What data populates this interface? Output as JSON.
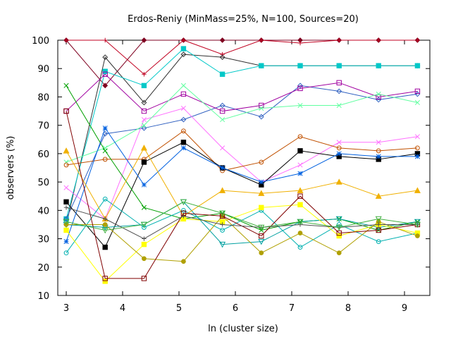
{
  "chart_data": {
    "type": "line",
    "title": "Erdos-Reniy (MinMass=25%, N=100, Sources=20)",
    "xlabel": "ln (cluster size)",
    "ylabel": "observers (%)",
    "xlim": [
      2.85,
      9.45
    ],
    "ylim": [
      10,
      100
    ],
    "x_ticks": [
      3,
      4,
      5,
      6,
      7,
      8,
      9
    ],
    "y_ticks": [
      10,
      20,
      30,
      40,
      50,
      60,
      70,
      80,
      90,
      100
    ],
    "grid": false,
    "legend": "none",
    "x": [
      3.0,
      3.69,
      4.38,
      5.08,
      5.77,
      6.46,
      7.15,
      7.84,
      8.54,
      9.23
    ],
    "series": [
      {
        "color": "#7f0020",
        "marker": "diamond-filled",
        "values": [
          100,
          84,
          100,
          100,
          100,
          100,
          100,
          100,
          100,
          100
        ]
      },
      {
        "color": "#c00020",
        "marker": "plus",
        "values": [
          100,
          100,
          88,
          100,
          95,
          100,
          99,
          100,
          100,
          100
        ]
      },
      {
        "color": "#303030",
        "marker": "diamond-open",
        "values": [
          35,
          94,
          78,
          95,
          94,
          91,
          91,
          91,
          91,
          91
        ]
      },
      {
        "color": "#00c8c8",
        "marker": "square-filled",
        "values": [
          37,
          89,
          84,
          97,
          88,
          91,
          91,
          91,
          91,
          91
        ]
      },
      {
        "color": "#3060c0",
        "marker": "diamond-open",
        "values": [
          37,
          67,
          69,
          72,
          77,
          73,
          84,
          82,
          79,
          81
        ]
      },
      {
        "color": "#a000a0",
        "marker": "square-open",
        "values": [
          75,
          88,
          75,
          81,
          75,
          77,
          83,
          85,
          80,
          82
        ]
      },
      {
        "color": "#ff70ff",
        "marker": "x",
        "values": [
          48,
          37,
          72,
          76,
          62,
          50,
          56,
          64,
          64,
          66
        ]
      },
      {
        "color": "#60ffa0",
        "marker": "x",
        "values": [
          57,
          62,
          70,
          84,
          72,
          76,
          77,
          77,
          81,
          78
        ]
      },
      {
        "color": "#c05000",
        "marker": "circle-open",
        "values": [
          56,
          58,
          58,
          68,
          54,
          57,
          66,
          62,
          61,
          62
        ]
      },
      {
        "color": "#000000",
        "marker": "square-filled",
        "values": [
          43,
          27,
          57,
          64,
          55,
          49,
          61,
          59,
          58,
          60
        ]
      },
      {
        "color": "#0060e0",
        "marker": "asterisk",
        "values": [
          29,
          69,
          49,
          62,
          55,
          50,
          53,
          60,
          59,
          59
        ]
      },
      {
        "color": "#00a000",
        "marker": "x",
        "values": [
          84,
          61,
          41,
          37,
          39,
          33,
          36,
          37,
          33,
          36
        ]
      },
      {
        "color": "#00a0a0",
        "marker": "triangle-down-open",
        "values": [
          35,
          34,
          35,
          43,
          28,
          29,
          36,
          37,
          34,
          36
        ]
      },
      {
        "color": "#00b0b0",
        "marker": "circle-open",
        "values": [
          25,
          44,
          34,
          40,
          33,
          40,
          27,
          35,
          29,
          32
        ]
      },
      {
        "color": "#f0b000",
        "marker": "triangle-filled",
        "values": [
          61,
          37,
          62,
          38,
          47,
          46,
          47,
          50,
          45,
          47
        ]
      },
      {
        "color": "#ffff00",
        "marker": "square-filled",
        "values": [
          33,
          15,
          28,
          37,
          36,
          41,
          42,
          31,
          35,
          32
        ]
      },
      {
        "color": "#b0a000",
        "marker": "circle-filled",
        "values": [
          35,
          35,
          23,
          22,
          38,
          25,
          32,
          25,
          36,
          31
        ]
      },
      {
        "color": "#800000",
        "marker": "square-open",
        "values": [
          75,
          16,
          16,
          39,
          38,
          31,
          45,
          32,
          33,
          35
        ]
      },
      {
        "color": "#505050",
        "marker": "plus",
        "values": [
          41,
          37,
          30,
          38,
          35,
          34,
          35,
          34,
          35,
          35
        ]
      },
      {
        "color": "#40b040",
        "marker": "triangle-down-open",
        "values": [
          36,
          33,
          35,
          43,
          39,
          34,
          36,
          34,
          37,
          35
        ]
      }
    ]
  }
}
